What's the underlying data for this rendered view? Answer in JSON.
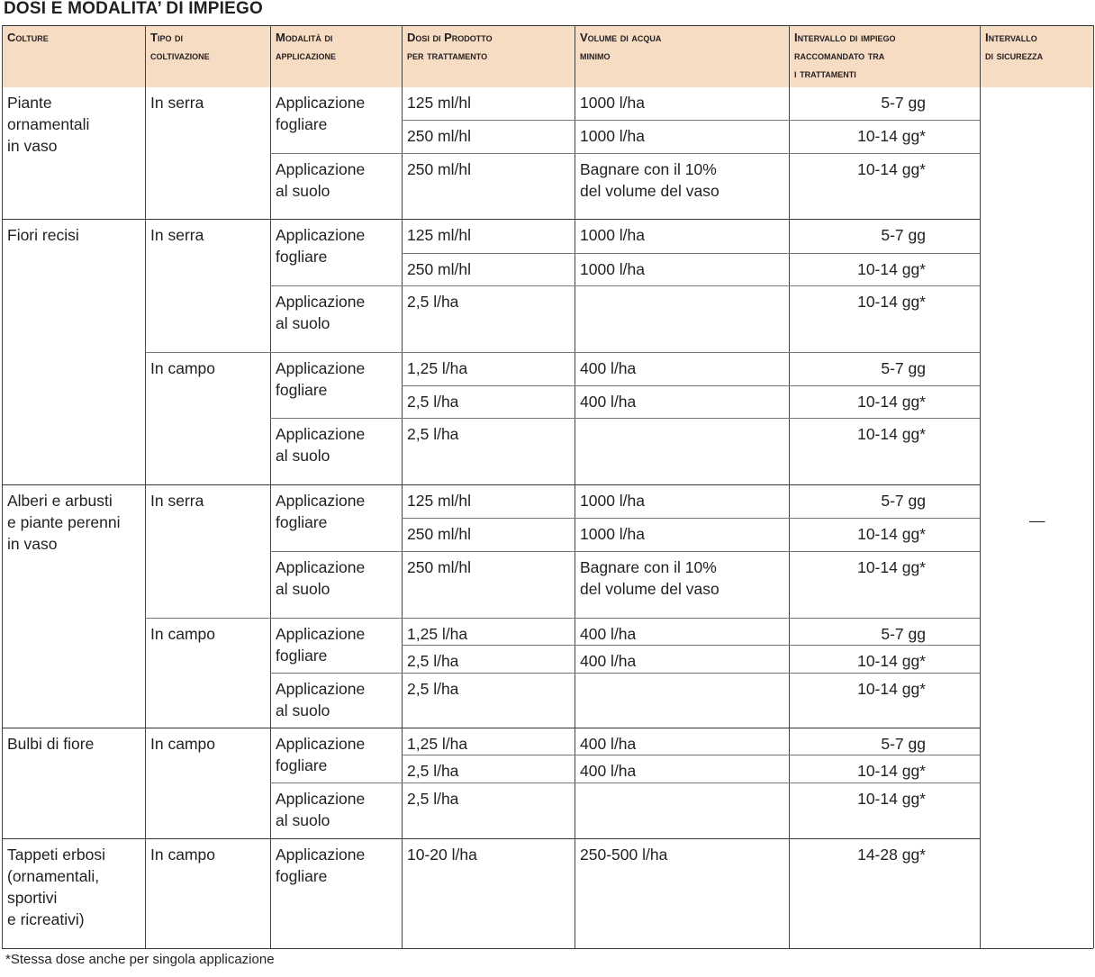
{
  "title": "DOSI E MODALITA’ DI IMPIEGO",
  "headers": [
    [
      "Colture"
    ],
    [
      "Tipo di",
      "coltivazione"
    ],
    [
      "Modalità di",
      "applicazione"
    ],
    [
      "Dosi di Prodotto",
      "per trattamento"
    ],
    [
      "Volume di acqua",
      "minimo"
    ],
    [
      "Intervallo di impiego",
      "raccomandato tra",
      "i trattamenti"
    ],
    [
      "Intervallo",
      "di sicurezza"
    ]
  ],
  "safety_interval": "—",
  "footnote": "*Stessa dose anche per singola applicazione",
  "groups": [
    {
      "crop": [
        "Piante",
        "ornamentali",
        "in vaso"
      ],
      "blocks": [
        {
          "cultivation": "In serra",
          "rows": [
            {
              "method": [
                "Applicazione",
                "fogliare"
              ],
              "sub": [
                {
                  "dose": "125 ml/hl",
                  "water": [
                    "1000 l/ha"
                  ],
                  "interval": "5-7 gg"
                },
                {
                  "dose": "250 ml/hl",
                  "water": [
                    "1000 l/ha"
                  ],
                  "interval": "10-14 gg*"
                }
              ]
            },
            {
              "method": [
                "Applicazione",
                "al suolo"
              ],
              "sub": [
                {
                  "dose": "250 ml/hl",
                  "water": [
                    "Bagnare con il 10%",
                    "del volume del vaso"
                  ],
                  "interval": "10-14 gg*"
                }
              ]
            }
          ]
        }
      ]
    },
    {
      "crop": [
        "Fiori recisi"
      ],
      "blocks": [
        {
          "cultivation": "In serra",
          "rows": [
            {
              "method": [
                "Applicazione",
                "fogliare"
              ],
              "sub": [
                {
                  "dose": "125 ml/hl",
                  "water": [
                    "1000 l/ha"
                  ],
                  "interval": "5-7 gg"
                },
                {
                  "dose": "250 ml/hl",
                  "water": [
                    "1000 l/ha"
                  ],
                  "interval": "10-14 gg*"
                }
              ]
            },
            {
              "method": [
                "Applicazione",
                "al suolo"
              ],
              "sub": [
                {
                  "dose": "2,5   l/ha",
                  "water": [],
                  "interval": "10-14 gg*"
                }
              ]
            }
          ]
        },
        {
          "cultivation": "In campo",
          "rows": [
            {
              "method": [
                "Applicazione",
                "fogliare"
              ],
              "sub": [
                {
                  "dose": "1,25 l/ha",
                  "water": [
                    "400 l/ha"
                  ],
                  "interval": "5-7 gg"
                },
                {
                  "dose": "2,5   l/ha",
                  "water": [
                    "400 l/ha"
                  ],
                  "interval": "10-14 gg*"
                }
              ]
            },
            {
              "method": [
                "Applicazione",
                "al suolo"
              ],
              "sub": [
                {
                  "dose": "2,5   l/ha",
                  "water": [],
                  "interval": "10-14 gg*"
                }
              ]
            }
          ]
        }
      ]
    },
    {
      "crop": [
        "Alberi e arbusti",
        "e piante perenni",
        "in vaso"
      ],
      "blocks": [
        {
          "cultivation": "In serra",
          "rows": [
            {
              "method": [
                "Applicazione",
                "fogliare"
              ],
              "sub": [
                {
                  "dose": "125 ml/hl",
                  "water": [
                    "1000 l/ha"
                  ],
                  "interval": "5-7 gg"
                },
                {
                  "dose": "250 ml/hl",
                  "water": [
                    "1000 l/ha"
                  ],
                  "interval": "10-14 gg*"
                }
              ]
            },
            {
              "method": [
                "Applicazione",
                "al suolo"
              ],
              "sub": [
                {
                  "dose": "250 ml/hl",
                  "water": [
                    "Bagnare con il 10%",
                    "del volume del vaso"
                  ],
                  "interval": "10-14 gg*"
                }
              ]
            }
          ]
        },
        {
          "cultivation": "In campo",
          "rows": [
            {
              "method": [
                "Applicazione",
                "fogliare"
              ],
              "sub": [
                {
                  "dose": "1,25 l/ha",
                  "water": [
                    "400 l/ha"
                  ],
                  "interval": "5-7 gg"
                },
                {
                  "dose": "2,5   l/ha",
                  "water": [
                    "400 l/ha"
                  ],
                  "interval": "10-14 gg*"
                }
              ]
            },
            {
              "method": [
                "Applicazione",
                "al suolo"
              ],
              "sub": [
                {
                  "dose": "2,5   l/ha",
                  "water": [],
                  "interval": "10-14 gg*"
                }
              ]
            }
          ]
        }
      ]
    },
    {
      "crop": [
        "Bulbi di fiore"
      ],
      "blocks": [
        {
          "cultivation": "In campo",
          "rows": [
            {
              "method": [
                "Applicazione",
                "fogliare"
              ],
              "sub": [
                {
                  "dose": "1,25 l/ha",
                  "water": [
                    "400 l/ha"
                  ],
                  "interval": "5-7 gg"
                },
                {
                  "dose": "2,5   l/ha",
                  "water": [
                    "400 l/ha"
                  ],
                  "interval": "10-14 gg*"
                }
              ]
            },
            {
              "method": [
                "Applicazione",
                "al suolo"
              ],
              "sub": [
                {
                  "dose": "2,5   l/ha",
                  "water": [],
                  "interval": "10-14 gg*"
                }
              ]
            }
          ]
        }
      ]
    },
    {
      "crop": [
        "Tappeti erbosi",
        "(ornamentali,",
        "sportivi",
        "e ricreativi)"
      ],
      "blocks": [
        {
          "cultivation": "In campo",
          "rows": [
            {
              "method": [
                "Applicazione",
                "fogliare"
              ],
              "sub": [
                {
                  "dose": "10-20 l/ha",
                  "water": [
                    "250-500 l/ha"
                  ],
                  "interval": "14-28 gg*"
                }
              ]
            }
          ]
        }
      ]
    }
  ]
}
